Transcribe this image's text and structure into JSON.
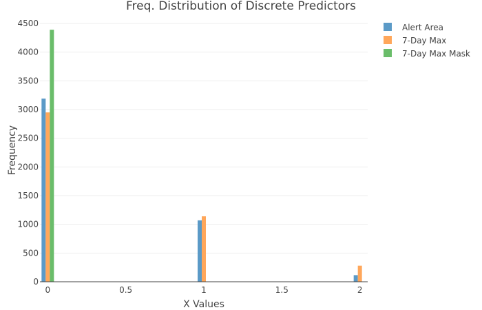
{
  "chart_data": {
    "type": "bar",
    "title": "Freq. Distribution of Discrete Predictors",
    "xlabel": "X Values",
    "ylabel": "Frequency",
    "xlim": [
      -0.05,
      2.05
    ],
    "ylim": [
      0,
      4500
    ],
    "xticks": [
      0,
      0.5,
      1,
      1.5,
      2
    ],
    "xtick_labels": [
      "0",
      "0.5",
      "1",
      "1.5",
      "2"
    ],
    "yticks": [
      0,
      500,
      1000,
      1500,
      2000,
      2500,
      3000,
      3500,
      4000,
      4500
    ],
    "ytick_labels": [
      "0",
      "500",
      "1000",
      "1500",
      "2000",
      "2500",
      "3000",
      "3500",
      "4000",
      "4500"
    ],
    "grid": "horizontal",
    "legend_position": "top-right",
    "series": [
      {
        "name": "Alert Area",
        "color": "#5b9ac7",
        "points": [
          {
            "x": 0,
            "y": 3190
          },
          {
            "x": 1,
            "y": 1070
          },
          {
            "x": 2,
            "y": 115
          }
        ]
      },
      {
        "name": "7-Day Max",
        "color": "#ffa75b",
        "points": [
          {
            "x": 0,
            "y": 2950
          },
          {
            "x": 1,
            "y": 1140
          },
          {
            "x": 2,
            "y": 280
          }
        ]
      },
      {
        "name": "7-Day Max Mask",
        "color": "#6abd6a",
        "points": [
          {
            "x": 0,
            "y": 4390
          }
        ]
      }
    ]
  }
}
